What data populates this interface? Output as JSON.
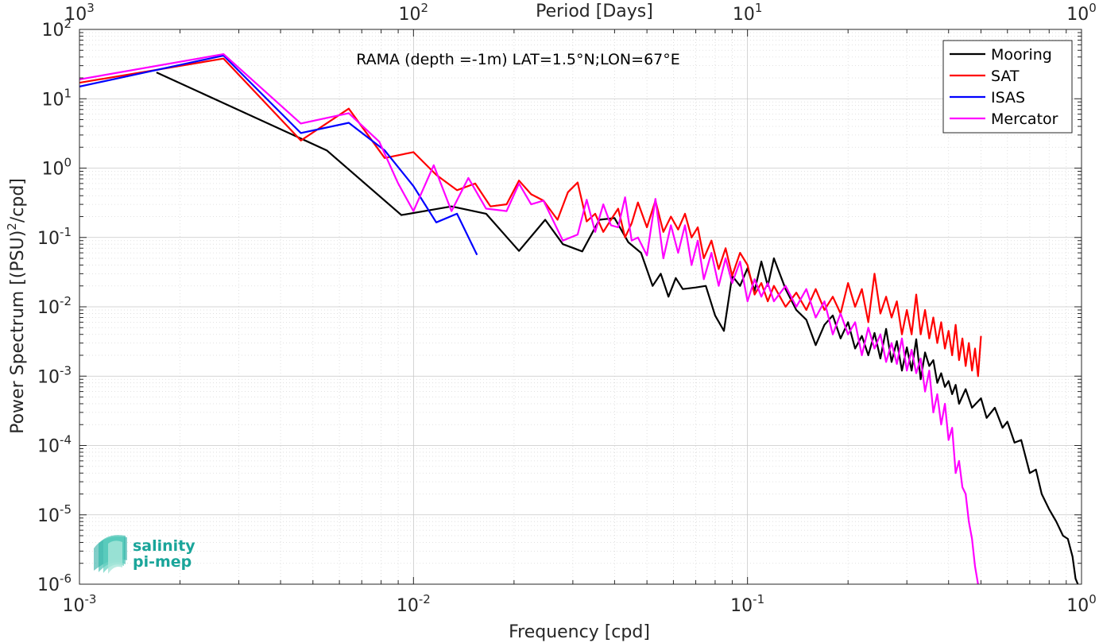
{
  "chart_data": {
    "type": "line",
    "title": "RAMA (depth =-1m) LAT=1.5°N;LON=67°E",
    "xlabel": "Frequency [cpd]",
    "ylabel": "Power Spectrum [(PSU)",
    "ylabel_sup": "2",
    "ylabel_tail": "/cpd]",
    "top_xlabel": "Period [Days]",
    "x_scale": "log",
    "y_scale": "log",
    "xlim": [
      0.001,
      1
    ],
    "ylim": [
      1e-06,
      100
    ],
    "grid": true,
    "legend_position": "top-right",
    "x_ticks": [
      {
        "value": 0.001,
        "base": "10",
        "exp": "-3"
      },
      {
        "value": 0.01,
        "base": "10",
        "exp": "-2"
      },
      {
        "value": 0.1,
        "base": "10",
        "exp": "-1"
      },
      {
        "value": 1,
        "base": "10",
        "exp": "0"
      }
    ],
    "top_ticks": [
      {
        "value": 0.001,
        "base": "10",
        "exp": "3"
      },
      {
        "value": 0.01,
        "base": "10",
        "exp": "2"
      },
      {
        "value": 0.1,
        "base": "10",
        "exp": "1"
      },
      {
        "value": 1,
        "base": "10",
        "exp": "0"
      }
    ],
    "y_ticks": [
      {
        "value": 100,
        "base": "10",
        "exp": "2"
      },
      {
        "value": 10,
        "base": "10",
        "exp": "1"
      },
      {
        "value": 1,
        "base": "10",
        "exp": "0"
      },
      {
        "value": 0.1,
        "base": "10",
        "exp": "-1"
      },
      {
        "value": 0.01,
        "base": "10",
        "exp": "-2"
      },
      {
        "value": 0.001,
        "base": "10",
        "exp": "-3"
      },
      {
        "value": 0.0001,
        "base": "10",
        "exp": "-4"
      },
      {
        "value": 1e-05,
        "base": "10",
        "exp": "-5"
      },
      {
        "value": 1e-06,
        "base": "10",
        "exp": "-6"
      }
    ],
    "series": [
      {
        "name": "Mooring",
        "color": "#000000",
        "points": [
          [
            0.0017,
            24
          ],
          [
            0.0055,
            1.8
          ],
          [
            0.0092,
            0.21
          ],
          [
            0.013,
            0.28
          ],
          [
            0.0165,
            0.22
          ],
          [
            0.0207,
            0.064
          ],
          [
            0.0248,
            0.18
          ],
          [
            0.028,
            0.08
          ],
          [
            0.032,
            0.063
          ],
          [
            0.036,
            0.18
          ],
          [
            0.04,
            0.19
          ],
          [
            0.044,
            0.085
          ],
          [
            0.048,
            0.06
          ],
          [
            0.052,
            0.02
          ],
          [
            0.055,
            0.03
          ],
          [
            0.058,
            0.014
          ],
          [
            0.061,
            0.026
          ],
          [
            0.064,
            0.018
          ],
          [
            0.07,
            0.019
          ],
          [
            0.075,
            0.02
          ],
          [
            0.08,
            0.0075
          ],
          [
            0.085,
            0.0045
          ],
          [
            0.09,
            0.028
          ],
          [
            0.095,
            0.02
          ],
          [
            0.1,
            0.036
          ],
          [
            0.105,
            0.017
          ],
          [
            0.11,
            0.045
          ],
          [
            0.115,
            0.02
          ],
          [
            0.12,
            0.05
          ],
          [
            0.13,
            0.018
          ],
          [
            0.14,
            0.009
          ],
          [
            0.15,
            0.0065
          ],
          [
            0.16,
            0.0028
          ],
          [
            0.17,
            0.0055
          ],
          [
            0.18,
            0.0075
          ],
          [
            0.19,
            0.0035
          ],
          [
            0.2,
            0.006
          ],
          [
            0.21,
            0.0025
          ],
          [
            0.22,
            0.0038
          ],
          [
            0.23,
            0.002
          ],
          [
            0.24,
            0.0042
          ],
          [
            0.25,
            0.0018
          ],
          [
            0.26,
            0.0048
          ],
          [
            0.27,
            0.0016
          ],
          [
            0.28,
            0.0032
          ],
          [
            0.29,
            0.0012
          ],
          [
            0.3,
            0.0026
          ],
          [
            0.31,
            0.0012
          ],
          [
            0.32,
            0.0034
          ],
          [
            0.33,
            0.0009
          ],
          [
            0.34,
            0.0022
          ],
          [
            0.35,
            0.0014
          ],
          [
            0.36,
            0.0017
          ],
          [
            0.37,
            0.0008
          ],
          [
            0.38,
            0.0011
          ],
          [
            0.39,
            0.0007
          ],
          [
            0.4,
            0.00085
          ],
          [
            0.41,
            0.00055
          ],
          [
            0.42,
            0.00075
          ],
          [
            0.43,
            0.0004
          ],
          [
            0.45,
            0.00065
          ],
          [
            0.47,
            0.00035
          ],
          [
            0.5,
            0.00048
          ],
          [
            0.52,
            0.00025
          ],
          [
            0.55,
            0.00035
          ],
          [
            0.58,
            0.00018
          ],
          [
            0.6,
            0.00022
          ],
          [
            0.63,
            0.00011
          ],
          [
            0.66,
            0.00012
          ],
          [
            0.7,
            4e-05
          ],
          [
            0.73,
            4.5e-05
          ],
          [
            0.76,
            2e-05
          ],
          [
            0.8,
            1.2e-05
          ],
          [
            0.84,
            8e-06
          ],
          [
            0.88,
            5e-06
          ],
          [
            0.91,
            4.5e-06
          ],
          [
            0.94,
            2.5e-06
          ],
          [
            0.96,
            1.2e-06
          ],
          [
            0.975,
            1e-06
          ]
        ]
      },
      {
        "name": "SAT",
        "color": "#ff0000",
        "points": [
          [
            0.001,
            17
          ],
          [
            0.0027,
            38
          ],
          [
            0.0046,
            2.5
          ],
          [
            0.0064,
            7.2
          ],
          [
            0.0082,
            1.4
          ],
          [
            0.01,
            1.7
          ],
          [
            0.0117,
            0.8
          ],
          [
            0.0135,
            0.48
          ],
          [
            0.0153,
            0.6
          ],
          [
            0.017,
            0.28
          ],
          [
            0.019,
            0.3
          ],
          [
            0.0207,
            0.66
          ],
          [
            0.0225,
            0.42
          ],
          [
            0.0245,
            0.34
          ],
          [
            0.027,
            0.18
          ],
          [
            0.029,
            0.45
          ],
          [
            0.031,
            0.62
          ],
          [
            0.033,
            0.17
          ],
          [
            0.035,
            0.22
          ],
          [
            0.037,
            0.12
          ],
          [
            0.039,
            0.18
          ],
          [
            0.041,
            0.26
          ],
          [
            0.043,
            0.1
          ],
          [
            0.045,
            0.16
          ],
          [
            0.047,
            0.32
          ],
          [
            0.05,
            0.14
          ],
          [
            0.053,
            0.34
          ],
          [
            0.056,
            0.12
          ],
          [
            0.059,
            0.2
          ],
          [
            0.062,
            0.13
          ],
          [
            0.065,
            0.22
          ],
          [
            0.068,
            0.1
          ],
          [
            0.071,
            0.14
          ],
          [
            0.074,
            0.05
          ],
          [
            0.078,
            0.09
          ],
          [
            0.082,
            0.035
          ],
          [
            0.086,
            0.07
          ],
          [
            0.09,
            0.028
          ],
          [
            0.095,
            0.06
          ],
          [
            0.1,
            0.04
          ],
          [
            0.105,
            0.015
          ],
          [
            0.11,
            0.022
          ],
          [
            0.115,
            0.012
          ],
          [
            0.12,
            0.02
          ],
          [
            0.13,
            0.01
          ],
          [
            0.14,
            0.016
          ],
          [
            0.15,
            0.009
          ],
          [
            0.16,
            0.018
          ],
          [
            0.17,
            0.009
          ],
          [
            0.18,
            0.014
          ],
          [
            0.19,
            0.008
          ],
          [
            0.2,
            0.022
          ],
          [
            0.21,
            0.01
          ],
          [
            0.22,
            0.018
          ],
          [
            0.23,
            0.006
          ],
          [
            0.24,
            0.03
          ],
          [
            0.25,
            0.008
          ],
          [
            0.26,
            0.014
          ],
          [
            0.27,
            0.007
          ],
          [
            0.28,
            0.012
          ],
          [
            0.29,
            0.004
          ],
          [
            0.3,
            0.009
          ],
          [
            0.31,
            0.004
          ],
          [
            0.32,
            0.015
          ],
          [
            0.33,
            0.004
          ],
          [
            0.34,
            0.009
          ],
          [
            0.35,
            0.0035
          ],
          [
            0.36,
            0.007
          ],
          [
            0.37,
            0.003
          ],
          [
            0.38,
            0.006
          ],
          [
            0.39,
            0.0025
          ],
          [
            0.4,
            0.0045
          ],
          [
            0.41,
            0.002
          ],
          [
            0.42,
            0.0055
          ],
          [
            0.43,
            0.0017
          ],
          [
            0.44,
            0.0035
          ],
          [
            0.45,
            0.0014
          ],
          [
            0.46,
            0.003
          ],
          [
            0.47,
            0.0012
          ],
          [
            0.48,
            0.0025
          ],
          [
            0.49,
            0.001
          ],
          [
            0.5,
            0.0038
          ]
        ]
      },
      {
        "name": "ISAS",
        "color": "#0000ff",
        "points": [
          [
            0.001,
            15
          ],
          [
            0.0027,
            42
          ],
          [
            0.0046,
            3.2
          ],
          [
            0.0064,
            4.5
          ],
          [
            0.0082,
            1.8
          ],
          [
            0.01,
            0.55
          ],
          [
            0.0117,
            0.165
          ],
          [
            0.0135,
            0.22
          ],
          [
            0.0155,
            0.056
          ]
        ]
      },
      {
        "name": "Mercator",
        "color": "#ff00ff",
        "points": [
          [
            0.001,
            19
          ],
          [
            0.0027,
            44
          ],
          [
            0.0046,
            4.4
          ],
          [
            0.0064,
            6.2
          ],
          [
            0.0079,
            2.4
          ],
          [
            0.009,
            0.6
          ],
          [
            0.01,
            0.24
          ],
          [
            0.0115,
            1.1
          ],
          [
            0.013,
            0.24
          ],
          [
            0.0146,
            0.72
          ],
          [
            0.0165,
            0.26
          ],
          [
            0.019,
            0.24
          ],
          [
            0.0207,
            0.6
          ],
          [
            0.0225,
            0.3
          ],
          [
            0.0245,
            0.34
          ],
          [
            0.028,
            0.09
          ],
          [
            0.031,
            0.11
          ],
          [
            0.033,
            0.35
          ],
          [
            0.035,
            0.12
          ],
          [
            0.037,
            0.3
          ],
          [
            0.039,
            0.15
          ],
          [
            0.041,
            0.14
          ],
          [
            0.043,
            0.38
          ],
          [
            0.045,
            0.09
          ],
          [
            0.047,
            0.1
          ],
          [
            0.05,
            0.055
          ],
          [
            0.053,
            0.36
          ],
          [
            0.056,
            0.05
          ],
          [
            0.059,
            0.15
          ],
          [
            0.062,
            0.06
          ],
          [
            0.065,
            0.15
          ],
          [
            0.068,
            0.04
          ],
          [
            0.071,
            0.09
          ],
          [
            0.074,
            0.025
          ],
          [
            0.078,
            0.06
          ],
          [
            0.082,
            0.02
          ],
          [
            0.086,
            0.05
          ],
          [
            0.09,
            0.022
          ],
          [
            0.095,
            0.045
          ],
          [
            0.1,
            0.012
          ],
          [
            0.105,
            0.025
          ],
          [
            0.11,
            0.014
          ],
          [
            0.115,
            0.022
          ],
          [
            0.12,
            0.012
          ],
          [
            0.13,
            0.02
          ],
          [
            0.14,
            0.01
          ],
          [
            0.15,
            0.018
          ],
          [
            0.16,
            0.007
          ],
          [
            0.17,
            0.012
          ],
          [
            0.18,
            0.004
          ],
          [
            0.19,
            0.008
          ],
          [
            0.2,
            0.004
          ],
          [
            0.21,
            0.006
          ],
          [
            0.22,
            0.002
          ],
          [
            0.23,
            0.005
          ],
          [
            0.24,
            0.0025
          ],
          [
            0.25,
            0.004
          ],
          [
            0.26,
            0.0016
          ],
          [
            0.27,
            0.003
          ],
          [
            0.28,
            0.0015
          ],
          [
            0.29,
            0.0035
          ],
          [
            0.3,
            0.0012
          ],
          [
            0.31,
            0.0024
          ],
          [
            0.32,
            0.0011
          ],
          [
            0.33,
            0.0018
          ],
          [
            0.34,
            0.0006
          ],
          [
            0.35,
            0.0012
          ],
          [
            0.36,
            0.0003
          ],
          [
            0.37,
            0.00055
          ],
          [
            0.38,
            0.0002
          ],
          [
            0.39,
            0.0004
          ],
          [
            0.4,
            0.00012
          ],
          [
            0.41,
            0.00018
          ],
          [
            0.42,
            4e-05
          ],
          [
            0.43,
            6e-05
          ],
          [
            0.44,
            2.5e-05
          ],
          [
            0.45,
            2e-05
          ],
          [
            0.46,
            8e-06
          ],
          [
            0.47,
            4.5e-06
          ],
          [
            0.48,
            1.8e-06
          ],
          [
            0.49,
            1e-06
          ]
        ]
      }
    ]
  },
  "logo": {
    "line1": "salinity",
    "line2": "pi-mep",
    "color": "#1aa59a"
  }
}
